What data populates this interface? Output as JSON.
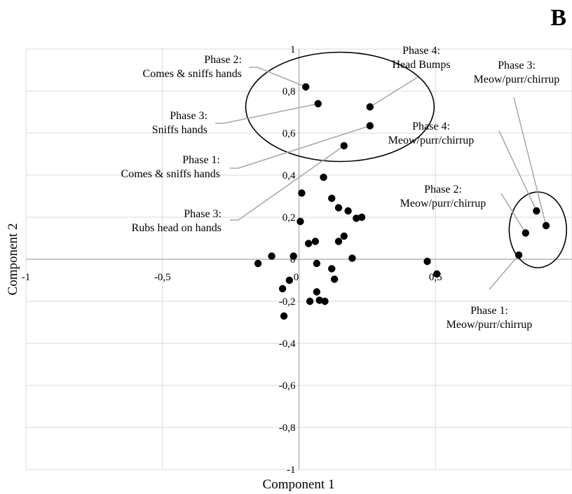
{
  "panel_label": "B",
  "chart_data": {
    "type": "scatter",
    "xlabel": "Component 1",
    "ylabel": "Component 2",
    "xlim": [
      -1,
      1
    ],
    "ylim": [
      -1,
      1
    ],
    "grid": true,
    "x_ticks": [
      {
        "value": -1,
        "label": "-1"
      },
      {
        "value": -0.5,
        "label": "-0,5"
      },
      {
        "value": 0,
        "label": "0"
      },
      {
        "value": 0.5,
        "label": "0,5"
      }
    ],
    "y_ticks": [
      {
        "value": 1,
        "label": "1"
      },
      {
        "value": 0.8,
        "label": "0,8"
      },
      {
        "value": 0.6,
        "label": "0,6"
      },
      {
        "value": 0.4,
        "label": "0,4"
      },
      {
        "value": 0.2,
        "label": "0,2"
      },
      {
        "value": 0,
        "label": "0"
      },
      {
        "value": -0.2,
        "label": "-0,2"
      },
      {
        "value": -0.4,
        "label": "-0,4"
      },
      {
        "value": -0.6,
        "label": "-0,6"
      },
      {
        "value": -0.8,
        "label": "-0,8"
      },
      {
        "value": -1,
        "label": "-1"
      }
    ],
    "points": [
      {
        "x": 0.025,
        "y": 0.82
      },
      {
        "x": 0.07,
        "y": 0.74
      },
      {
        "x": 0.26,
        "y": 0.725
      },
      {
        "x": 0.26,
        "y": 0.635
      },
      {
        "x": 0.165,
        "y": 0.54
      },
      {
        "x": 0.905,
        "y": 0.16
      },
      {
        "x": 0.87,
        "y": 0.23
      },
      {
        "x": 0.83,
        "y": 0.125
      },
      {
        "x": 0.805,
        "y": 0.02
      },
      {
        "x": 0.09,
        "y": 0.39
      },
      {
        "x": 0.01,
        "y": 0.315
      },
      {
        "x": 0.12,
        "y": 0.29
      },
      {
        "x": 0.145,
        "y": 0.245
      },
      {
        "x": 0.18,
        "y": 0.23
      },
      {
        "x": 0.21,
        "y": 0.195
      },
      {
        "x": 0.23,
        "y": 0.2
      },
      {
        "x": 0.005,
        "y": 0.18
      },
      {
        "x": 0.165,
        "y": 0.11
      },
      {
        "x": 0.145,
        "y": 0.085
      },
      {
        "x": 0.06,
        "y": 0.085
      },
      {
        "x": 0.035,
        "y": 0.075
      },
      {
        "x": -0.02,
        "y": 0.015
      },
      {
        "x": -0.1,
        "y": 0.015
      },
      {
        "x": 0.195,
        "y": 0.005
      },
      {
        "x": -0.15,
        "y": -0.02
      },
      {
        "x": 0.065,
        "y": -0.02
      },
      {
        "x": 0.12,
        "y": -0.045
      },
      {
        "x": 0.47,
        "y": -0.01
      },
      {
        "x": 0.505,
        "y": -0.07
      },
      {
        "x": -0.035,
        "y": -0.1
      },
      {
        "x": 0.13,
        "y": -0.095
      },
      {
        "x": -0.06,
        "y": -0.14
      },
      {
        "x": 0.065,
        "y": -0.155
      },
      {
        "x": 0.04,
        "y": -0.2
      },
      {
        "x": 0.075,
        "y": -0.195
      },
      {
        "x": 0.095,
        "y": -0.2
      },
      {
        "x": -0.055,
        "y": -0.27
      }
    ],
    "annotations": [
      {
        "lines": [
          "Phase 2:",
          "Comes & sniffs hands"
        ],
        "anchor": "end",
        "target": 0
      },
      {
        "lines": [
          "Phase 3:",
          "Sniffs hands"
        ],
        "anchor": "end",
        "target": 1
      },
      {
        "lines": [
          "Phase 1:",
          "Comes & sniffs hands"
        ],
        "anchor": "end",
        "target": 3
      },
      {
        "lines": [
          "Phase 3:",
          "Rubs head on hands"
        ],
        "anchor": "end",
        "target": 4
      },
      {
        "lines": [
          "Phase 4:",
          "Head Bumps"
        ],
        "anchor": "middle",
        "target": 2
      },
      {
        "lines": [
          "Phase 3:",
          "Meow/purr/chirrup"
        ],
        "anchor": "middle",
        "target": 5
      },
      {
        "lines": [
          "Phase 4:",
          "Meow/purr/chirrup"
        ],
        "anchor": "middle",
        "target": 6
      },
      {
        "lines": [
          "Phase 2:",
          "Meow/purr/chirrup"
        ],
        "anchor": "middle",
        "target": 7
      },
      {
        "lines": [
          "Phase 1:",
          "Meow/purr/chirrup"
        ],
        "anchor": "middle",
        "target": 8
      }
    ],
    "ellipses": [
      {
        "cx": 0.15,
        "cy": 0.725,
        "rx": 0.345,
        "ry": 0.26
      },
      {
        "cx": 0.875,
        "cy": 0.14,
        "rx": 0.105,
        "ry": 0.18
      }
    ]
  }
}
